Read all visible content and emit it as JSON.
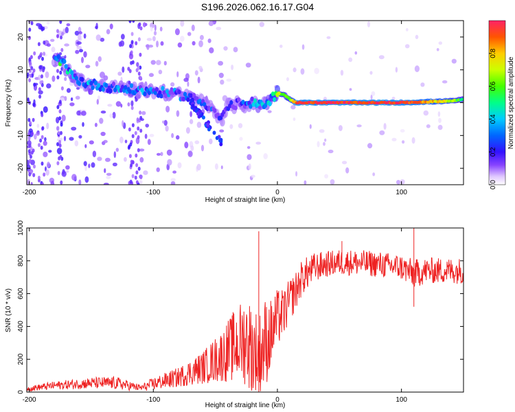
{
  "title": "S196.2026.062.16.17.G04",
  "colorbar": {
    "label": "Normalized spectral amplitude",
    "ticks": [
      "0.0",
      "0.2",
      "0.4",
      "0.6",
      "0.8"
    ],
    "tick_values": [
      0.0,
      0.2,
      0.4,
      0.6,
      0.8
    ],
    "range": [
      0.0,
      1.0
    ]
  },
  "chart_data": [
    {
      "type": "heatmap",
      "title": "",
      "xlabel": "Height of straight line (km)",
      "ylabel": "Frequency (Hz)",
      "xlim": [
        -202,
        150
      ],
      "ylim": [
        -25,
        25
      ],
      "xticks": [
        -200,
        -100,
        0,
        100
      ],
      "xtick_labels": [
        "-200",
        "-100",
        "0",
        "100"
      ],
      "yticks": [
        -20,
        -10,
        0,
        10,
        20
      ],
      "ytick_labels": [
        "-20",
        "-10",
        "0",
        "10",
        "20"
      ],
      "ridge": {
        "x": [
          -180,
          -175,
          -165,
          -155,
          -140,
          -120,
          -100,
          -80,
          -65,
          -55,
          -50,
          -45,
          -40,
          -35,
          -30,
          -25,
          -20,
          -15,
          -10,
          -5,
          0,
          5,
          10,
          15,
          20,
          50,
          100,
          140,
          150
        ],
        "y": [
          13,
          13,
          8,
          6,
          5,
          4,
          3.5,
          2.5,
          1,
          -1,
          -3,
          -5,
          -1,
          -1,
          0,
          -1,
          0,
          -1,
          0,
          1,
          3,
          2.5,
          1,
          0,
          0,
          0,
          0,
          0.5,
          1
        ],
        "amplitude": [
          0.3,
          0.45,
          0.3,
          0.3,
          0.25,
          0.3,
          0.25,
          0.25,
          0.2,
          0.2,
          0.15,
          0.15,
          0.1,
          0.2,
          0.2,
          0.25,
          0.3,
          0.35,
          0.35,
          0.4,
          0.7,
          0.6,
          0.6,
          0.9,
          0.95,
          0.95,
          0.95,
          0.7,
          0.5
        ]
      }
    },
    {
      "type": "line",
      "title": "",
      "xlabel": "Height of straight line (km)",
      "ylabel": "SNR (10 * v/v)",
      "xlim": [
        -202,
        150
      ],
      "ylim": [
        0,
        1000
      ],
      "xticks": [
        -200,
        -100,
        0,
        100
      ],
      "xtick_labels": [
        "-200",
        "-100",
        "0",
        "100"
      ],
      "yticks": [
        0,
        200,
        400,
        600,
        800,
        1000
      ],
      "ytick_labels": [
        "0",
        "200",
        "400",
        "600",
        "800",
        "1000"
      ],
      "series": [
        {
          "name": "SNR",
          "color": "#ee2222",
          "envelope_x": [
            -202,
            -180,
            -150,
            -130,
            -110,
            -100,
            -80,
            -60,
            -45,
            -35,
            -25,
            -20,
            -15,
            -10,
            -5,
            0,
            5,
            10,
            15,
            20,
            30,
            40,
            50,
            60,
            80,
            100,
            110,
            120,
            140,
            150
          ],
          "envelope_mean": [
            20,
            40,
            55,
            55,
            25,
            50,
            90,
            150,
            220,
            280,
            320,
            250,
            220,
            300,
            350,
            450,
            480,
            560,
            620,
            700,
            760,
            780,
            790,
            790,
            780,
            760,
            720,
            740,
            740,
            740
          ],
          "envelope_amp": [
            15,
            25,
            35,
            40,
            20,
            40,
            60,
            100,
            160,
            220,
            280,
            300,
            260,
            280,
            220,
            180,
            150,
            130,
            120,
            110,
            90,
            80,
            80,
            80,
            80,
            80,
            90,
            80,
            80,
            80
          ],
          "spikes": [
            {
              "x": -15,
              "y": 980
            },
            {
              "x": -15,
              "y": 0
            },
            {
              "x": 52,
              "y": 920
            },
            {
              "x": 110,
              "y": 1000
            },
            {
              "x": 110,
              "y": 520
            }
          ]
        }
      ]
    }
  ]
}
